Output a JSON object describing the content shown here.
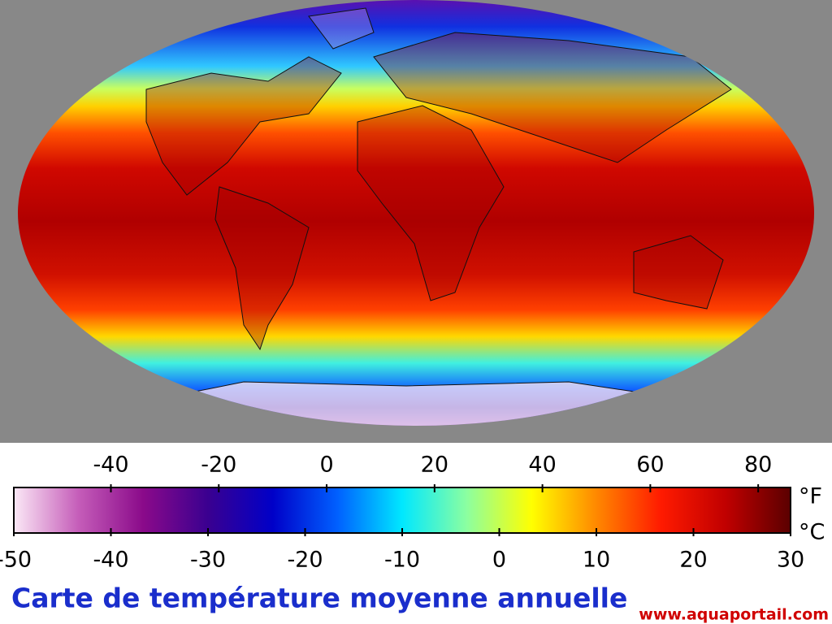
{
  "map": {
    "title": "Carte de température moyenne annuelle",
    "watermark": "www.aquaportail.com"
  },
  "colorbar": {
    "c_unit": "°C",
    "f_unit": "°F",
    "c_range": [
      -50,
      30
    ],
    "c_ticks": [
      -50,
      -40,
      -30,
      -20,
      -10,
      0,
      10,
      20,
      30
    ],
    "f_ticks": [
      -40,
      -20,
      0,
      20,
      40,
      60,
      80
    ],
    "colors": [
      "#fbe8f6",
      "#c55db9",
      "#8a0a8a",
      "#3a0090",
      "#0000c8",
      "#0060ff",
      "#00e8ff",
      "#8cffa0",
      "#ffff00",
      "#ff8800",
      "#ff1a00",
      "#c00000",
      "#5a0000"
    ]
  }
}
